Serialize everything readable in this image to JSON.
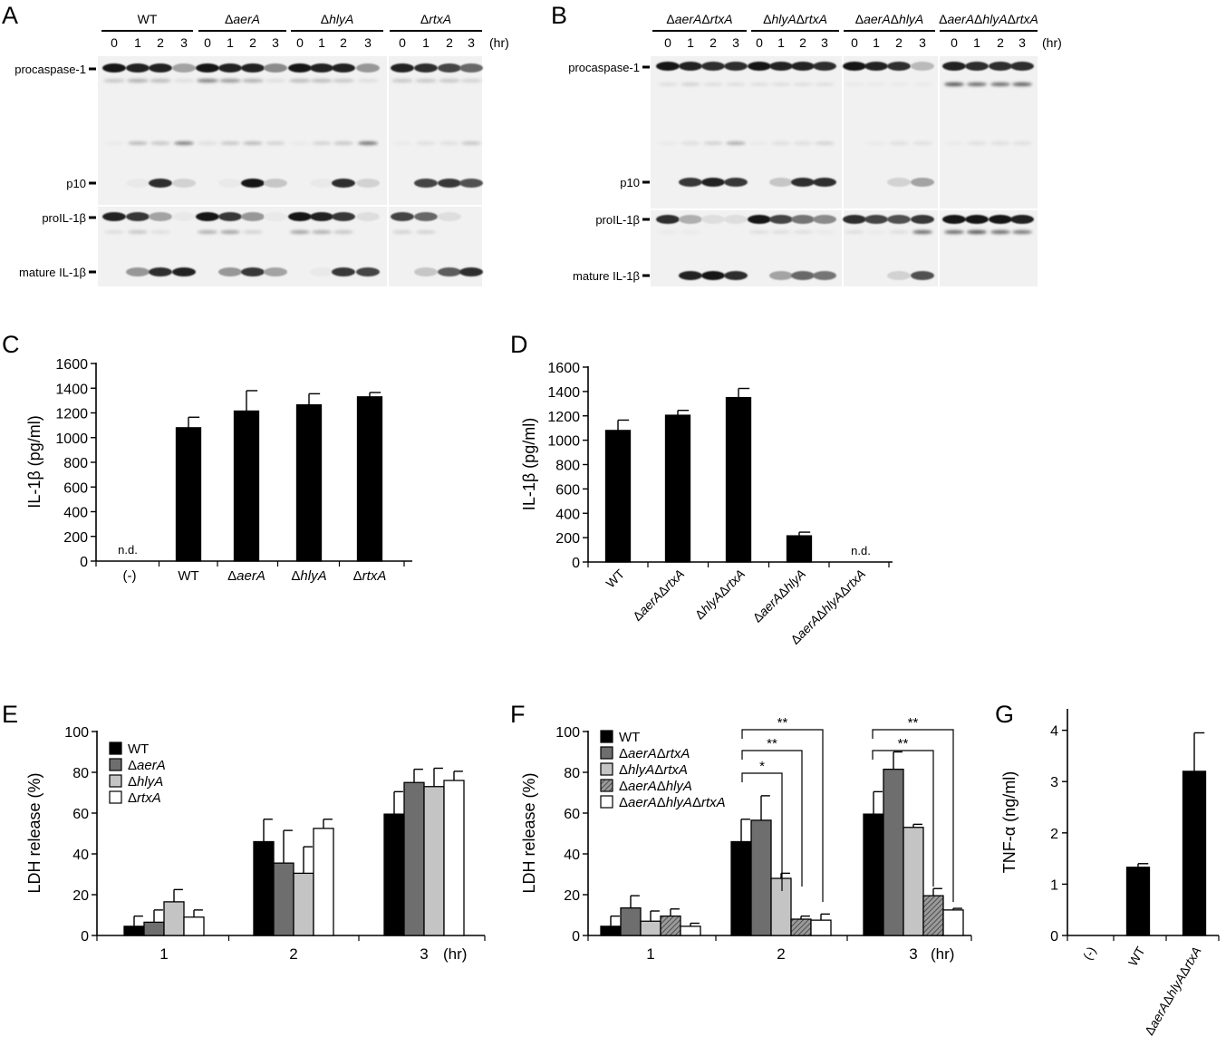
{
  "panels": {
    "A": {
      "letter": "A",
      "groups": [
        "WT",
        "ΔaerA",
        "ΔhlyA",
        "ΔrtxA"
      ],
      "times": [
        "0",
        "1",
        "2",
        "3"
      ],
      "time_unit": "(hr)",
      "markers": [
        "procaspase-1",
        "p10",
        "proIL-1β",
        "mature IL-1β"
      ]
    },
    "B": {
      "letter": "B",
      "groups": [
        "ΔaerAΔrtxA",
        "ΔhlyAΔrtxA",
        "ΔaerAΔhlyA",
        "ΔaerAΔhlyAΔrtxA"
      ],
      "times": [
        "0",
        "1",
        "2",
        "3"
      ],
      "time_unit": "(hr)",
      "markers": [
        "procaspase-1",
        "p10",
        "proIL-1β",
        "mature IL-1β"
      ]
    },
    "C": {
      "letter": "C",
      "nd_label": "n.d."
    },
    "D": {
      "letter": "D",
      "nd_label": "n.d."
    },
    "E": {
      "letter": "E",
      "x_unit": "(hr)"
    },
    "F": {
      "letter": "F",
      "x_unit": "(hr)",
      "sig": [
        "**",
        "**",
        "*",
        "**",
        "**"
      ]
    },
    "G": {
      "letter": "G"
    }
  },
  "chart_data": [
    {
      "id": "C",
      "type": "bar",
      "categories": [
        "(-)",
        "WT",
        "ΔaerA",
        "ΔhlyA",
        "ΔrtxA"
      ],
      "values": [
        0,
        1080,
        1215,
        1265,
        1330
      ],
      "errors": [
        0,
        85,
        165,
        90,
        35
      ],
      "not_detected": [
        true,
        false,
        false,
        false,
        false
      ],
      "ylabel": "IL-1β (pg/ml)",
      "ylim": [
        0,
        1600
      ],
      "yticks": [
        0,
        200,
        400,
        600,
        800,
        1000,
        1200,
        1400,
        1600
      ],
      "color": "#000000"
    },
    {
      "id": "D",
      "type": "bar",
      "categories": [
        "WT",
        "ΔaerAΔrtxA",
        "ΔhlyAΔrtxA",
        "ΔaerAΔhlyA",
        "ΔaerAΔhlyAΔrtxA"
      ],
      "values": [
        1080,
        1205,
        1350,
        215,
        0
      ],
      "errors": [
        85,
        40,
        75,
        30,
        0
      ],
      "not_detected": [
        false,
        false,
        false,
        false,
        true
      ],
      "ylabel": "IL-1β (pg/ml)",
      "ylim": [
        0,
        1600
      ],
      "yticks": [
        0,
        200,
        400,
        600,
        800,
        1000,
        1200,
        1400,
        1600
      ],
      "color": "#000000"
    },
    {
      "id": "E",
      "type": "bar",
      "categories": [
        "1",
        "2",
        "3"
      ],
      "series": [
        {
          "name": "WT",
          "values": [
            4.5,
            46,
            59.5
          ],
          "errors": [
            5,
            11,
            11
          ],
          "color": "#000000"
        },
        {
          "name": "ΔaerA",
          "values": [
            6.5,
            35.5,
            75
          ],
          "errors": [
            6,
            16,
            6.5
          ],
          "color": "#6e6e6e"
        },
        {
          "name": "ΔhlyA",
          "values": [
            16.5,
            30.5,
            73
          ],
          "errors": [
            6,
            13,
            9
          ],
          "color": "#c4c4c4"
        },
        {
          "name": "ΔrtxA",
          "values": [
            9,
            52.5,
            76
          ],
          "errors": [
            3.5,
            4.5,
            4.5
          ],
          "color": "#ffffff"
        }
      ],
      "ylabel": "LDH release (%)",
      "ylim": [
        0,
        100
      ],
      "yticks": [
        0,
        20,
        40,
        60,
        80,
        100
      ],
      "legend": "top-left"
    },
    {
      "id": "F",
      "type": "bar",
      "categories": [
        "1",
        "2",
        "3"
      ],
      "series": [
        {
          "name": "WT",
          "values": [
            4.5,
            46,
            59.5
          ],
          "errors": [
            5,
            11,
            11
          ],
          "color": "#000000"
        },
        {
          "name": "ΔaerAΔrtxA",
          "values": [
            13.5,
            56.5,
            81.5
          ],
          "errors": [
            6,
            12,
            8.5
          ],
          "color": "#6e6e6e"
        },
        {
          "name": "ΔhlyAΔrtxA",
          "values": [
            7,
            28,
            53
          ],
          "errors": [
            5,
            2.5,
            1.5
          ],
          "color": "#c4c4c4"
        },
        {
          "name": "ΔaerAΔhlyA",
          "values": [
            9.5,
            8,
            19.5
          ],
          "errors": [
            3.5,
            1.5,
            3.5
          ],
          "color": "hatch"
        },
        {
          "name": "ΔaerAΔhlyAΔrtxA",
          "values": [
            4.5,
            7.5,
            12.5
          ],
          "errors": [
            1.5,
            3,
            0.8
          ],
          "color": "#ffffff"
        }
      ],
      "ylabel": "LDH release (%)",
      "ylim": [
        0,
        100
      ],
      "yticks": [
        0,
        20,
        40,
        60,
        80,
        100
      ],
      "legend": "top-left"
    },
    {
      "id": "G",
      "type": "bar",
      "categories": [
        "(-)",
        "WT",
        "ΔaerAΔhlyAΔrtxA"
      ],
      "values": [
        0,
        1.33,
        3.2
      ],
      "errors": [
        0,
        0.07,
        0.75
      ],
      "ylabel": "TNF-α (ng/ml)",
      "ylim": [
        0,
        4.4
      ],
      "yticks": [
        0,
        1,
        2,
        3,
        4
      ],
      "color": "#000000"
    }
  ]
}
